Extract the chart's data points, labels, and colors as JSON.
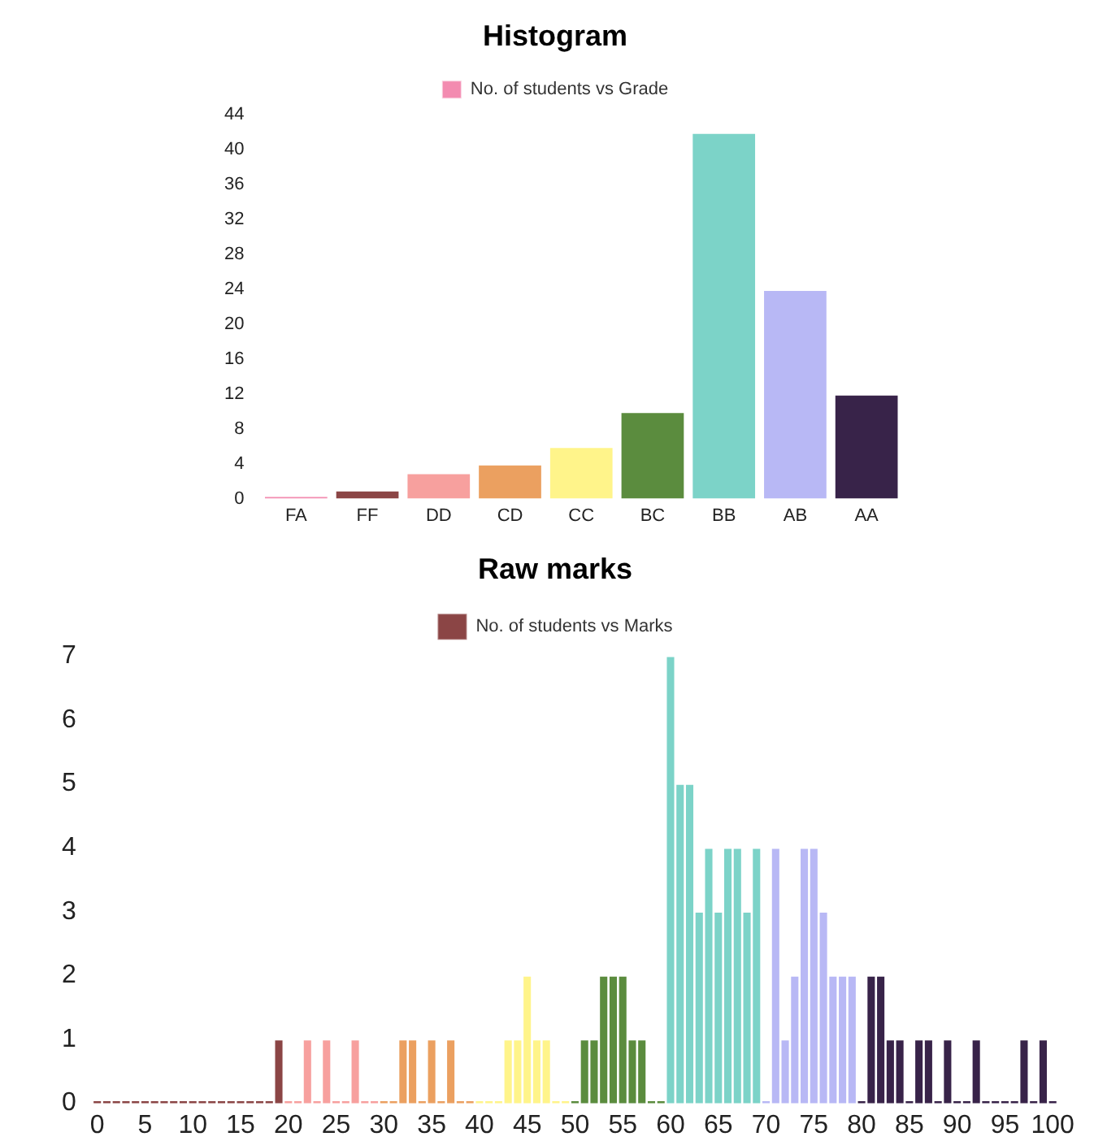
{
  "chart_data": [
    {
      "type": "bar",
      "title": "Histogram",
      "legend": "top",
      "categories": [
        "FA",
        "FF",
        "DD",
        "CD",
        "CC",
        "BC",
        "BB",
        "AB",
        "AA"
      ],
      "series": [
        {
          "name": "No. of students vs Grade",
          "values": [
            0,
            1,
            3,
            4,
            6,
            10,
            42,
            24,
            12
          ],
          "colors": [
            "#f38bb0",
            "#8b4545",
            "#f7a09e",
            "#eba060",
            "#fff48a",
            "#5b8c3e",
            "#7cd3c8",
            "#b8b8f5",
            "#382349"
          ]
        }
      ],
      "ylim": [
        0,
        44
      ],
      "yticks": [
        0,
        4,
        8,
        12,
        16,
        20,
        24,
        28,
        32,
        36,
        40,
        44
      ]
    },
    {
      "type": "bar",
      "title": "Raw marks",
      "legend": "top",
      "categories": [
        "0",
        null,
        null,
        null,
        null,
        "5",
        null,
        null,
        null,
        null,
        "10",
        null,
        null,
        null,
        null,
        "15",
        null,
        null,
        null,
        null,
        "20",
        null,
        null,
        null,
        null,
        "25",
        null,
        null,
        null,
        null,
        "30",
        null,
        null,
        null,
        null,
        "35",
        null,
        null,
        null,
        null,
        "40",
        null,
        null,
        null,
        null,
        "45",
        null,
        null,
        null,
        null,
        "50",
        null,
        null,
        null,
        null,
        "55",
        null,
        null,
        null,
        null,
        "60",
        null,
        null,
        null,
        null,
        "65",
        null,
        null,
        null,
        null,
        "70",
        null,
        null,
        null,
        null,
        "75",
        null,
        null,
        null,
        null,
        "80",
        null,
        null,
        null,
        null,
        "85",
        null,
        null,
        null,
        null,
        "90",
        null,
        null,
        null,
        null,
        "95",
        null,
        null,
        null,
        null,
        "100"
      ],
      "series": [
        {
          "name": "No. of students vs Marks",
          "values": [
            0,
            0,
            0,
            0,
            0,
            0,
            0,
            0,
            0,
            0,
            0,
            0,
            0,
            0,
            0,
            0,
            0,
            0,
            0,
            1,
            0,
            0,
            1,
            0,
            1,
            0,
            0,
            1,
            0,
            0,
            0,
            0,
            1,
            1,
            0,
            1,
            0,
            1,
            0,
            0,
            0,
            0,
            0,
            1,
            1,
            2,
            1,
            1,
            0,
            0,
            0,
            1,
            1,
            2,
            2,
            2,
            1,
            1,
            0,
            0,
            7,
            5,
            5,
            3,
            4,
            3,
            4,
            4,
            3,
            4,
            0,
            4,
            1,
            2,
            4,
            4,
            3,
            2,
            2,
            2,
            0,
            2,
            2,
            1,
            1,
            0,
            1,
            1,
            0,
            1,
            0,
            0,
            1,
            0,
            0,
            0,
            0,
            1,
            0,
            1,
            0
          ],
          "colors": [
            "#8b4545",
            "#8b4545",
            "#8b4545",
            "#8b4545",
            "#8b4545",
            "#8b4545",
            "#8b4545",
            "#8b4545",
            "#8b4545",
            "#8b4545",
            "#8b4545",
            "#8b4545",
            "#8b4545",
            "#8b4545",
            "#8b4545",
            "#8b4545",
            "#8b4545",
            "#8b4545",
            "#8b4545",
            "#8b4545",
            "#f7a09e",
            "#f7a09e",
            "#f7a09e",
            "#f7a09e",
            "#f7a09e",
            "#f7a09e",
            "#f7a09e",
            "#f7a09e",
            "#f7a09e",
            "#f7a09e",
            "#eba060",
            "#eba060",
            "#eba060",
            "#eba060",
            "#eba060",
            "#eba060",
            "#eba060",
            "#eba060",
            "#eba060",
            "#eba060",
            "#fff48a",
            "#fff48a",
            "#fff48a",
            "#fff48a",
            "#fff48a",
            "#fff48a",
            "#fff48a",
            "#fff48a",
            "#fff48a",
            "#fff48a",
            "#5b8c3e",
            "#5b8c3e",
            "#5b8c3e",
            "#5b8c3e",
            "#5b8c3e",
            "#5b8c3e",
            "#5b8c3e",
            "#5b8c3e",
            "#5b8c3e",
            "#5b8c3e",
            "#7cd3c8",
            "#7cd3c8",
            "#7cd3c8",
            "#7cd3c8",
            "#7cd3c8",
            "#7cd3c8",
            "#7cd3c8",
            "#7cd3c8",
            "#7cd3c8",
            "#7cd3c8",
            "#b8b8f5",
            "#b8b8f5",
            "#b8b8f5",
            "#b8b8f5",
            "#b8b8f5",
            "#b8b8f5",
            "#b8b8f5",
            "#b8b8f5",
            "#b8b8f5",
            "#b8b8f5",
            "#382349",
            "#382349",
            "#382349",
            "#382349",
            "#382349",
            "#382349",
            "#382349",
            "#382349",
            "#382349",
            "#382349",
            "#382349",
            "#382349",
            "#382349",
            "#382349",
            "#382349",
            "#382349",
            "#382349",
            "#382349",
            "#382349",
            "#382349",
            "#382349"
          ]
        }
      ],
      "ylim": [
        0,
        7
      ],
      "yticks": [
        0,
        1,
        2,
        3,
        4,
        5,
        6,
        7
      ]
    }
  ]
}
